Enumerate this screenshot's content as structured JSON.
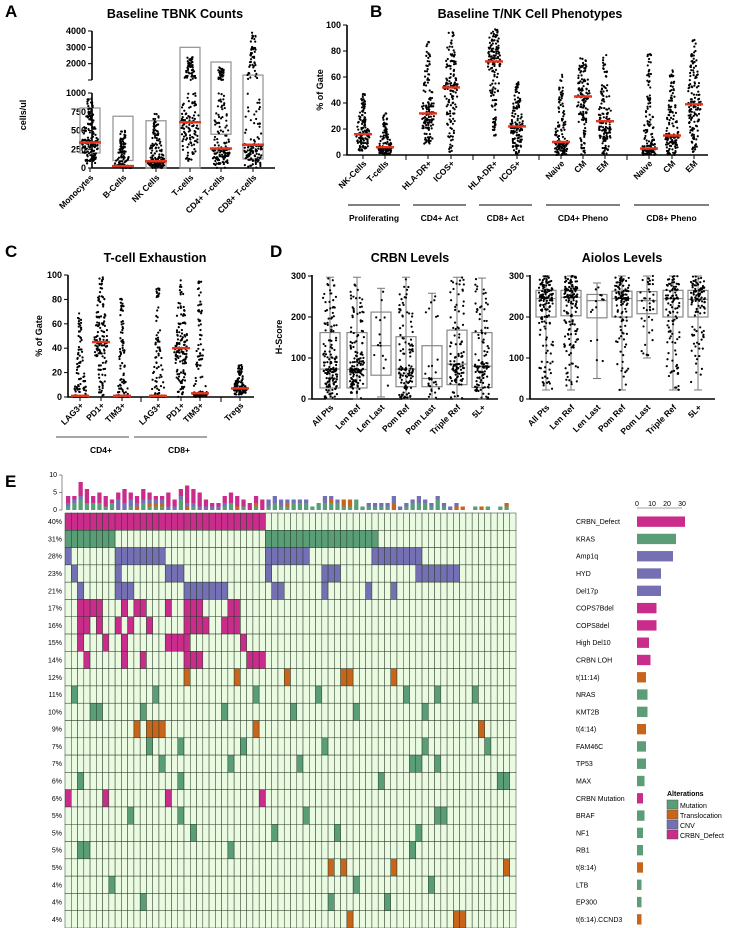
{
  "panels": {
    "A": "A",
    "B": "B",
    "C": "C",
    "D": "D",
    "E": "E"
  },
  "colors": {
    "median": "#e8341c",
    "point": "#000000",
    "box": "#999999",
    "Mutation": "#5a9e78",
    "Translocation": "#c8651b",
    "CNV": "#7470b3",
    "CRBN_Defect": "#c92c8a",
    "cell_bg": "#eafbe2"
  },
  "chart_data": [
    {
      "id": "A",
      "type": "scatter",
      "title": "Baseline TBNK Counts",
      "ylabel": "cells/ul",
      "ylim": [
        0,
        4000
      ],
      "axis_break": 1000,
      "yticks_lower": [
        "0",
        "250",
        "500",
        "750",
        "1000"
      ],
      "yticks_upper": [
        "2000",
        "3000",
        "4000"
      ],
      "categories": [
        "Monocytes",
        "B-Cells",
        "NK Cells",
        "T-cells",
        "CD4+ T-cells",
        "CD8+ T-cells"
      ],
      "medians": [
        340,
        25,
        90,
        610,
        260,
        310
      ],
      "min": [
        60,
        0,
        0,
        60,
        0,
        0
      ],
      "max": [
        960,
        510,
        730,
        2450,
        1800,
        3900
      ],
      "box_low": [
        200,
        100,
        0,
        0,
        450,
        120
      ],
      "box_high": [
        800,
        690,
        630,
        3000,
        2100,
        1300
      ]
    },
    {
      "id": "B",
      "type": "scatter",
      "title": "Baseline T/NK Cell Phenotypes",
      "ylabel": "% of Gate",
      "ylim": [
        0,
        100
      ],
      "yticks": [
        "0",
        "20",
        "40",
        "60",
        "80",
        "100"
      ],
      "categories": [
        "NK-Cells",
        "T-cells",
        "HLA-DR+",
        "ICOS+",
        "HLA-DR+",
        "ICOS+",
        "Naive",
        "CM",
        "EM",
        "Naive",
        "CM",
        "EM"
      ],
      "groups": [
        {
          "label": "Proliferating",
          "members": [
            0,
            1
          ]
        },
        {
          "label": "CD4+ Act",
          "members": [
            2,
            3
          ]
        },
        {
          "label": "CD8+ Act",
          "members": [
            4,
            5
          ]
        },
        {
          "label": "CD4+ Pheno",
          "members": [
            6,
            7,
            8
          ]
        },
        {
          "label": "CD8+ Pheno",
          "members": [
            9,
            10,
            11
          ]
        }
      ],
      "medians": [
        16,
        6,
        32,
        52,
        72,
        22,
        10,
        45,
        26,
        5,
        15,
        39
      ],
      "min": [
        3,
        1,
        8,
        2,
        14,
        1,
        0,
        0,
        1,
        0,
        0,
        2
      ],
      "max": [
        47,
        32,
        88,
        97,
        97,
        57,
        63,
        75,
        77,
        78,
        66,
        89
      ]
    },
    {
      "id": "C",
      "type": "scatter",
      "title": "T-cell Exhaustion",
      "ylabel": "% of Gate",
      "ylim": [
        0,
        100
      ],
      "yticks": [
        "0",
        "20",
        "40",
        "60",
        "80",
        "100"
      ],
      "categories": [
        "LAG3+",
        "PD1+",
        "TIM3+",
        "LAG3+",
        "PD1+",
        "TIM3+",
        "Tregs"
      ],
      "groups": [
        {
          "label": "CD4+",
          "members": [
            0,
            1,
            2
          ]
        },
        {
          "label": "CD8+",
          "members": [
            3,
            4,
            5
          ]
        }
      ],
      "medians": [
        1,
        45,
        1,
        1,
        40,
        3,
        7
      ],
      "min": [
        0,
        0,
        0,
        0,
        0,
        0,
        2
      ],
      "max": [
        69,
        99,
        81,
        93,
        99,
        96,
        27
      ]
    },
    {
      "id": "D1",
      "type": "box",
      "title": "CRBN Levels",
      "ylabel": "H-Score",
      "ylim": [
        0,
        300
      ],
      "yticks": [
        "0",
        "100",
        "200",
        "300"
      ],
      "categories": [
        "All Pts",
        "Len Ref",
        "Len Last",
        "Pom Ref",
        "Pom Last",
        "Triple Ref",
        "5L+"
      ],
      "medians": [
        73,
        72,
        130,
        73,
        50,
        85,
        80
      ],
      "q1": [
        27,
        27,
        58,
        30,
        30,
        35,
        28
      ],
      "q3": [
        162,
        162,
        212,
        152,
        130,
        168,
        162
      ],
      "min": [
        0,
        0,
        5,
        0,
        0,
        0,
        0
      ],
      "max": [
        297,
        297,
        270,
        297,
        258,
        297,
        295
      ],
      "n": [
        150,
        150,
        14,
        120,
        30,
        110,
        110
      ]
    },
    {
      "id": "D2",
      "type": "box",
      "title": "Aiolos Levels",
      "ylabel": "",
      "ylim": [
        0,
        300
      ],
      "yticks": [
        "0",
        "100",
        "200",
        "300"
      ],
      "categories": [
        "All Pts",
        "Len Ref",
        "Len Last",
        "Pom Ref",
        "Pom Last",
        "Triple Ref",
        "5L+"
      ],
      "medians": [
        245,
        248,
        240,
        245,
        240,
        245,
        243
      ],
      "q1": [
        200,
        203,
        198,
        200,
        208,
        200,
        200
      ],
      "q3": [
        265,
        265,
        255,
        263,
        262,
        265,
        265
      ],
      "min": [
        22,
        22,
        50,
        22,
        100,
        22,
        22
      ],
      "max": [
        300,
        300,
        283,
        300,
        300,
        300,
        300
      ],
      "n": [
        150,
        150,
        14,
        120,
        40,
        110,
        110
      ]
    },
    {
      "id": "E",
      "type": "heatmap",
      "subtype": "oncoprint",
      "n_samples": 72,
      "top_ticks": [
        "0",
        "5",
        "10"
      ],
      "side_ticks": [
        "0",
        "10",
        "20",
        "30"
      ],
      "legend_title": "Alterations",
      "legend": [
        "Mutation",
        "Translocation",
        "CNV",
        "CRBN_Defect"
      ],
      "rows": [
        {
          "gene": "CRBN_Defect",
          "pct": "40%",
          "type": "CRBN_Defect",
          "cols": [
            [
              0,
              31
            ]
          ]
        },
        {
          "gene": "KRAS",
          "pct": "31%",
          "type": "Mutation",
          "cols": [
            [
              0,
              7
            ],
            [
              32,
              49
            ]
          ]
        },
        {
          "gene": "Amp1q",
          "pct": "28%",
          "type": "CNV",
          "cols": [
            0,
            [
              8,
              15
            ],
            [
              32,
              38
            ],
            [
              49,
              56
            ]
          ]
        },
        {
          "gene": "HYD",
          "pct": "23%",
          "type": "CNV",
          "cols": [
            1,
            8,
            [
              16,
              18
            ],
            32,
            [
              41,
              43
            ],
            [
              56,
              62
            ]
          ]
        },
        {
          "gene": "Del17p",
          "pct": "21%",
          "type": "CNV",
          "cols": [
            2,
            [
              8,
              10
            ],
            [
              19,
              25
            ],
            [
              33,
              34
            ],
            41,
            48,
            52
          ]
        },
        {
          "gene": "COPS7Bdel",
          "pct": "17%",
          "type": "CRBN_Defect",
          "cols": [
            [
              2,
              5
            ],
            9,
            [
              11,
              12
            ],
            16,
            [
              19,
              21
            ],
            [
              26,
              27
            ]
          ]
        },
        {
          "gene": "COPS8del",
          "pct": "16%",
          "type": "CRBN_Defect",
          "cols": [
            [
              2,
              3
            ],
            5,
            8,
            10,
            13,
            [
              19,
              22
            ],
            [
              25,
              27
            ]
          ]
        },
        {
          "gene": "High Del10",
          "pct": "15%",
          "type": "CRBN_Defect",
          "cols": [
            2,
            6,
            9,
            [
              16,
              19
            ],
            28
          ]
        },
        {
          "gene": "CRBN LOH",
          "pct": "14%",
          "type": "CRBN_Defect",
          "cols": [
            3,
            9,
            12,
            [
              19,
              21
            ],
            [
              29,
              31
            ]
          ]
        },
        {
          "gene": "t(11:14)",
          "pct": "12%",
          "type": "Translocation",
          "cols": [
            19,
            27,
            35,
            [
              44,
              45
            ],
            52
          ]
        },
        {
          "gene": "NRAS",
          "pct": "11%",
          "type": "Mutation",
          "cols": [
            1,
            14,
            30,
            40,
            54,
            59,
            65
          ]
        },
        {
          "gene": "KMT2B",
          "pct": "10%",
          "type": "Mutation",
          "cols": [
            [
              4,
              5
            ],
            12,
            25,
            36,
            46,
            57
          ]
        },
        {
          "gene": "t(4:14)",
          "pct": "9%",
          "type": "Translocation",
          "cols": [
            11,
            [
              13,
              15
            ],
            30,
            66
          ]
        },
        {
          "gene": "FAM46C",
          "pct": "7%",
          "type": "Mutation",
          "cols": [
            13,
            18,
            28,
            41,
            57,
            67
          ]
        },
        {
          "gene": "TP53",
          "pct": "7%",
          "type": "Mutation",
          "cols": [
            15,
            26,
            37,
            [
              55,
              56
            ],
            59
          ]
        },
        {
          "gene": "MAX",
          "pct": "6%",
          "type": "Mutation",
          "cols": [
            2,
            18,
            50,
            [
              69,
              70
            ]
          ]
        },
        {
          "gene": "CRBN Mutation",
          "pct": "6%",
          "type": "CRBN_Defect",
          "cols": [
            0,
            6,
            16,
            31
          ]
        },
        {
          "gene": "BRAF",
          "pct": "5%",
          "type": "Mutation",
          "cols": [
            10,
            18,
            38,
            [
              59,
              60
            ]
          ]
        },
        {
          "gene": "NF1",
          "pct": "5%",
          "type": "Mutation",
          "cols": [
            20,
            33,
            43,
            56
          ]
        },
        {
          "gene": "RB1",
          "pct": "5%",
          "type": "Mutation",
          "cols": [
            [
              2,
              3
            ],
            26,
            55
          ]
        },
        {
          "gene": "t(8:14)",
          "pct": "5%",
          "type": "Translocation",
          "cols": [
            42,
            44,
            52,
            70
          ]
        },
        {
          "gene": "LTB",
          "pct": "4%",
          "type": "Mutation",
          "cols": [
            7,
            46,
            58
          ]
        },
        {
          "gene": "EP300",
          "pct": "4%",
          "type": "Mutation",
          "cols": [
            12,
            42,
            51
          ]
        },
        {
          "gene": "t(6:14).CCND3",
          "pct": "4%",
          "type": "Translocation",
          "cols": [
            45,
            [
              62,
              63
            ]
          ]
        }
      ]
    }
  ]
}
